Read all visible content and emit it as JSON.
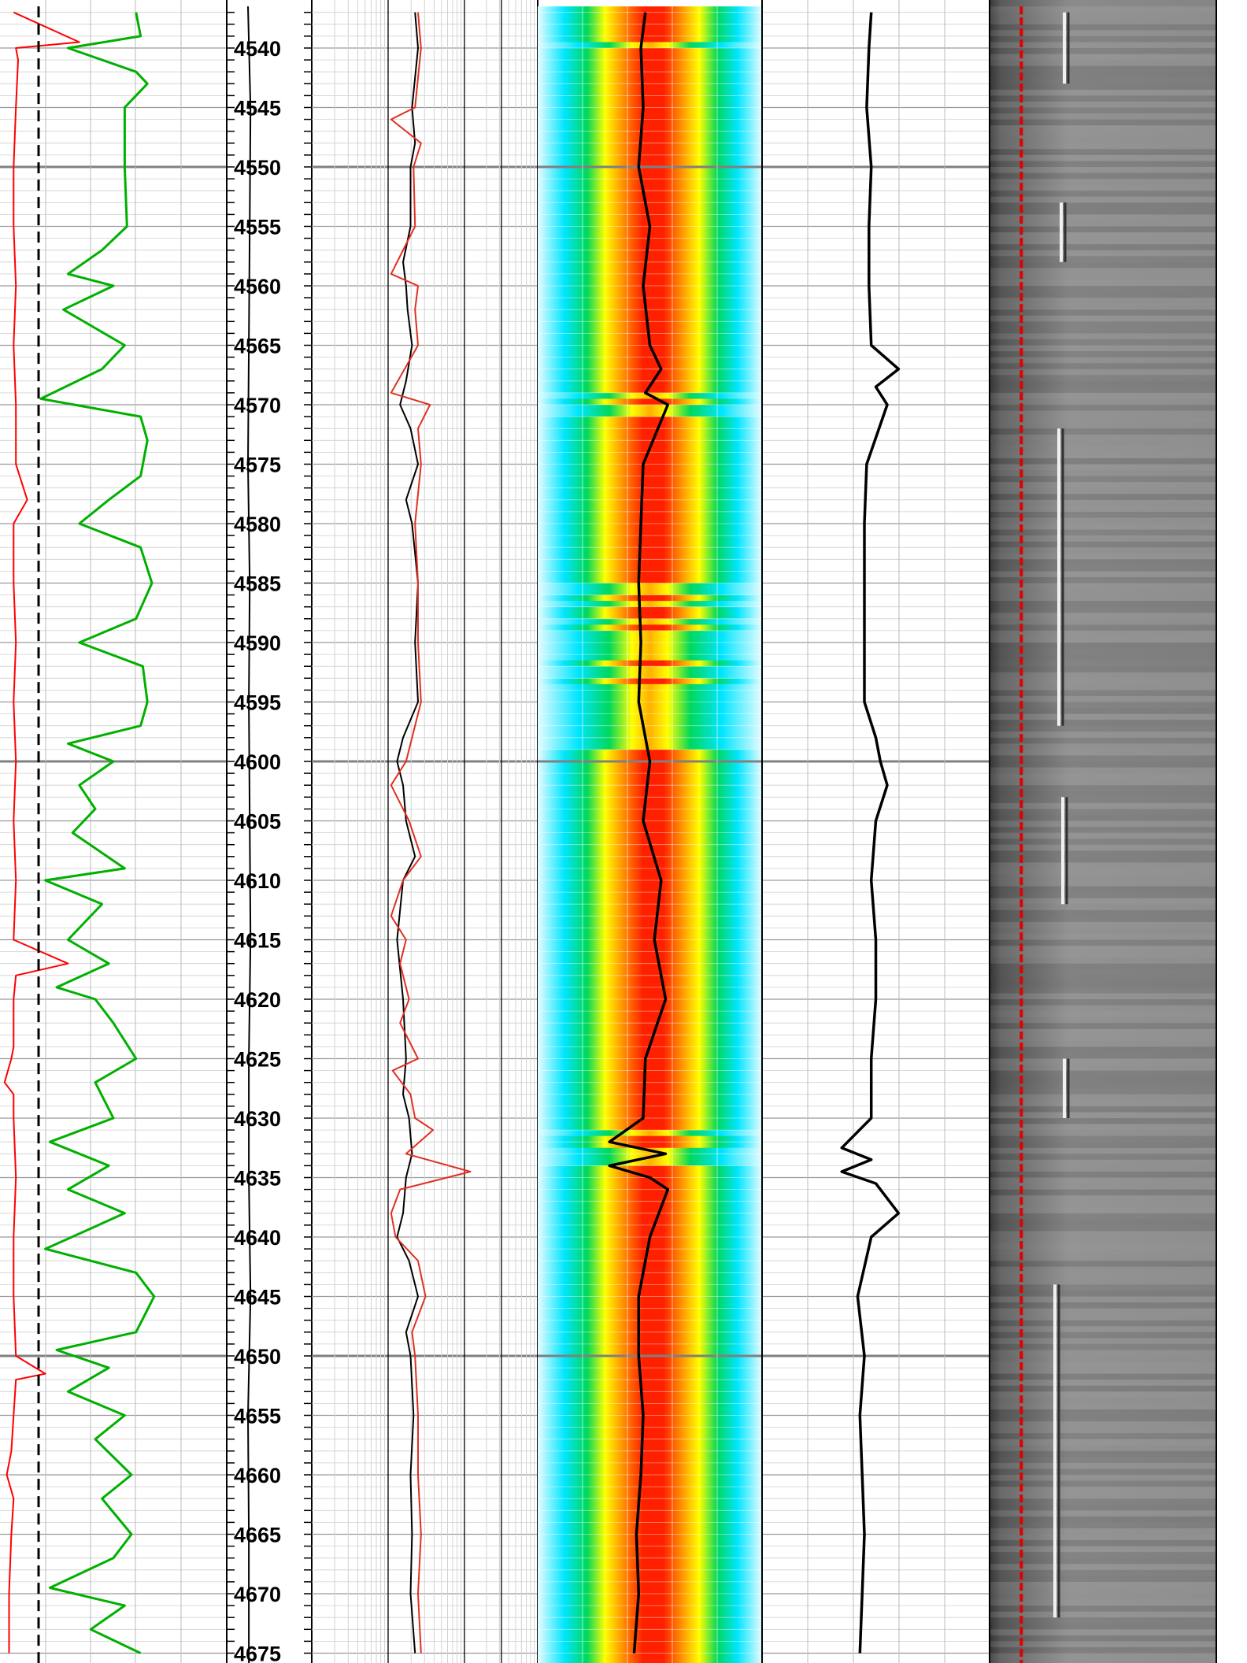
{
  "chart_data": {
    "type": "line",
    "title": "",
    "depth_axis": {
      "label": "",
      "range": [
        4536.5,
        4676.0
      ],
      "major_step": 50,
      "label_step": 5,
      "minor_step": 1,
      "tick_labels": [
        "4540",
        "4545",
        "4550",
        "4555",
        "4560",
        "4565",
        "4570",
        "4575",
        "4580",
        "4585",
        "4590",
        "4595",
        "4600",
        "4605",
        "4610",
        "4615",
        "4620",
        "4625",
        "4630",
        "4635",
        "4640",
        "4645",
        "4650",
        "4655",
        "4660",
        "4665",
        "4670",
        "4675"
      ]
    },
    "tracks": [
      {
        "name": "track-1",
        "grid": "linear",
        "series": [
          {
            "color": "#ff0000",
            "x_range": [
              0,
              1
            ],
            "depths": [
              4537,
              4539.5,
              4540,
              4541,
              4545,
              4550,
              4555,
              4560,
              4565,
              4570,
              4575,
              4578,
              4580,
              4585,
              4590,
              4595,
              4600,
              4605,
              4610,
              4615,
              4617,
              4618,
              4620,
              4624,
              4625,
              4627,
              4628,
              4630,
              4635,
              4640,
              4645,
              4650,
              4651.5,
              4652,
              4655,
              4658,
              4660,
              4662,
              4665,
              4670,
              4675
            ],
            "values": [
              0.06,
              0.35,
              0.07,
              0.08,
              0.07,
              0.06,
              0.06,
              0.07,
              0.06,
              0.07,
              0.07,
              0.12,
              0.06,
              0.06,
              0.07,
              0.06,
              0.07,
              0.06,
              0.07,
              0.06,
              0.3,
              0.07,
              0.06,
              0.06,
              0.05,
              0.02,
              0.06,
              0.06,
              0.07,
              0.06,
              0.06,
              0.07,
              0.2,
              0.07,
              0.06,
              0.05,
              0.03,
              0.06,
              0.05,
              0.04,
              0.04
            ]
          },
          {
            "color": "#000000",
            "dash": true,
            "x_range": [
              0,
              1
            ],
            "depths": [
              4536.5,
              4676
            ],
            "values": [
              0.17,
              0.17
            ]
          },
          {
            "color": "#00b000",
            "x_range": [
              0,
              1
            ],
            "depths": [
              4537,
              4539,
              4540,
              4542,
              4543,
              4545,
              4550,
              4555,
              4557,
              4559,
              4560,
              4562,
              4565,
              4567,
              4569.5,
              4571,
              4573,
              4576,
              4578,
              4580,
              4582,
              4585,
              4588,
              4590,
              4592,
              4595,
              4597,
              4598.5,
              4600,
              4602,
              4604,
              4606,
              4609,
              4610,
              4612,
              4615,
              4617,
              4619,
              4620,
              4622,
              4625,
              4627,
              4630,
              4632,
              4634,
              4636,
              4638,
              4641,
              4643,
              4645,
              4648,
              4649.5,
              4651,
              4653,
              4655,
              4657,
              4660,
              4662,
              4665,
              4667,
              4669.5,
              4671,
              4673,
              4675
            ],
            "values": [
              0.6,
              0.62,
              0.3,
              0.6,
              0.65,
              0.55,
              0.55,
              0.56,
              0.45,
              0.3,
              0.5,
              0.28,
              0.55,
              0.45,
              0.18,
              0.62,
              0.65,
              0.62,
              0.48,
              0.35,
              0.62,
              0.67,
              0.6,
              0.35,
              0.63,
              0.65,
              0.62,
              0.3,
              0.5,
              0.35,
              0.42,
              0.32,
              0.55,
              0.2,
              0.45,
              0.3,
              0.48,
              0.25,
              0.42,
              0.5,
              0.6,
              0.42,
              0.5,
              0.22,
              0.48,
              0.3,
              0.55,
              0.2,
              0.6,
              0.68,
              0.6,
              0.25,
              0.48,
              0.3,
              0.55,
              0.42,
              0.58,
              0.45,
              0.58,
              0.5,
              0.22,
              0.55,
              0.4,
              0.62
            ]
          }
        ]
      },
      {
        "name": "track-2",
        "grid": "linear",
        "series": [
          {
            "color": "#000000",
            "x_range": [
              0,
              1
            ],
            "depths": [
              4536.5,
              4545,
              4555,
              4565,
              4575,
              4585,
              4595,
              4605,
              4615,
              4625,
              4635,
              4645,
              4655,
              4665,
              4676
            ],
            "values": [
              0.25,
              0.28,
              0.27,
              0.26,
              0.25,
              0.27,
              0.26,
              0.27,
              0.28,
              0.26,
              0.26,
              0.28,
              0.25,
              0.26,
              0.26
            ]
          }
        ]
      },
      {
        "name": "track-3",
        "grid": "logarithmic",
        "series": [
          {
            "color": "#000000",
            "x_range": [
              0,
              1
            ],
            "depths": [
              4537,
              4540,
              4545,
              4548,
              4550,
              4555,
              4558,
              4560,
              4562,
              4565,
              4568,
              4570,
              4572,
              4575,
              4578,
              4580,
              4585,
              4590,
              4595,
              4598,
              4600,
              4602,
              4605,
              4608,
              4610,
              4615,
              4620,
              4625,
              4628,
              4630,
              4633,
              4635,
              4638,
              4640,
              4642,
              4645,
              4648,
              4650,
              4655,
              4660,
              4665,
              4670,
              4675
            ],
            "values": [
              0.18,
              0.2,
              0.16,
              0.18,
              0.15,
              0.15,
              0.1,
              0.12,
              0.13,
              0.16,
              0.12,
              0.08,
              0.15,
              0.2,
              0.12,
              0.16,
              0.2,
              0.18,
              0.2,
              0.1,
              0.06,
              0.1,
              0.12,
              0.18,
              0.1,
              0.06,
              0.1,
              0.12,
              0.1,
              0.14,
              0.16,
              0.12,
              0.1,
              0.06,
              0.14,
              0.2,
              0.12,
              0.15,
              0.17,
              0.15,
              0.16,
              0.15,
              0.18
            ]
          },
          {
            "color": "#e03020",
            "x_range": [
              0,
              1
            ],
            "depths": [
              4537,
              4540,
              4545,
              4546,
              4548,
              4550,
              4555,
              4559,
              4560,
              4562,
              4565,
              4569,
              4570,
              4572,
              4575,
              4580,
              4585,
              4590,
              4595,
              4600,
              4602,
              4605,
              4608,
              4610,
              4613,
              4615,
              4617,
              4620,
              4622,
              4625,
              4626,
              4628,
              4630,
              4631,
              4633,
              4634.5,
              4636,
              4638,
              4640,
              4642,
              4645,
              4648,
              4650,
              4655,
              4660,
              4665,
              4670,
              4675
            ],
            "values": [
              0.2,
              0.22,
              0.18,
              0.02,
              0.22,
              0.17,
              0.18,
              0.02,
              0.2,
              0.18,
              0.2,
              0.02,
              0.28,
              0.2,
              0.22,
              0.18,
              0.2,
              0.2,
              0.22,
              0.12,
              0.02,
              0.14,
              0.22,
              0.1,
              0.02,
              0.12,
              0.08,
              0.14,
              0.08,
              0.2,
              0.03,
              0.15,
              0.18,
              0.3,
              0.12,
              0.55,
              0.08,
              0.02,
              0.05,
              0.2,
              0.25,
              0.16,
              0.18,
              0.2,
              0.2,
              0.22,
              0.2,
              0.22
            ]
          }
        ]
      },
      {
        "name": "track-4",
        "type": "heatmap",
        "colorscale": [
          "#ffffff",
          "#00e5ff",
          "#00d85a",
          "#ffff00",
          "#ff9000",
          "#ff2000"
        ],
        "series": [
          {
            "color": "#000000",
            "x_range": [
              0,
              1
            ],
            "depths": [
              4537,
              4540,
              4545,
              4550,
              4555,
              4560,
              4565,
              4567,
              4569,
              4570,
              4575,
              4580,
              4585,
              4590,
              4595,
              4600,
              4605,
              4610,
              4615,
              4620,
              4625,
              4630,
              4632,
              4633,
              4634,
              4635,
              4636,
              4640,
              4645,
              4650,
              4655,
              4660,
              4665,
              4670,
              4675
            ],
            "values": [
              0.48,
              0.46,
              0.47,
              0.45,
              0.5,
              0.47,
              0.5,
              0.55,
              0.48,
              0.58,
              0.47,
              0.46,
              0.45,
              0.46,
              0.45,
              0.5,
              0.47,
              0.55,
              0.52,
              0.57,
              0.48,
              0.47,
              0.32,
              0.57,
              0.32,
              0.5,
              0.58,
              0.5,
              0.45,
              0.45,
              0.47,
              0.46,
              0.44,
              0.45,
              0.43
            ]
          }
        ],
        "band_intensity": {
          "depths": [
            4536.5,
            4540,
            4545,
            4550,
            4555,
            4560,
            4565,
            4570,
            4575,
            4580,
            4585,
            4590,
            4595,
            4598,
            4600,
            4605,
            4610,
            4615,
            4620,
            4625,
            4630,
            4633,
            4635,
            4640,
            4645,
            4650,
            4655,
            4660,
            4665,
            4670,
            4676
          ],
          "values": [
            0.9,
            0.7,
            0.85,
            0.75,
            0.9,
            0.8,
            0.95,
            0.6,
            0.85,
            0.75,
            0.7,
            0.6,
            0.5,
            0.4,
            0.95,
            1.0,
            1.0,
            0.9,
            0.85,
            0.8,
            0.85,
            0.5,
            0.95,
            1.0,
            0.95,
            0.85,
            0.9,
            0.85,
            0.9,
            0.8,
            0.85
          ]
        }
      },
      {
        "name": "track-5",
        "grid": "linear",
        "series": [
          {
            "color": "#000000",
            "x_range": [
              0,
              1
            ],
            "depths": [
              4537,
              4540,
              4545,
              4550,
              4555,
              4560,
              4565,
              4567,
              4568.5,
              4570,
              4575,
              4580,
              4585,
              4590,
              4595,
              4598,
              4600,
              4602,
              4605,
              4610,
              4615,
              4620,
              4625,
              4630,
              4632.5,
              4633.5,
              4634.5,
              4635.5,
              4638,
              4640,
              4645,
              4650,
              4655,
              4660,
              4665,
              4670,
              4675
            ],
            "values": [
              0.48,
              0.47,
              0.46,
              0.48,
              0.47,
              0.47,
              0.48,
              0.6,
              0.5,
              0.55,
              0.46,
              0.45,
              0.45,
              0.45,
              0.45,
              0.5,
              0.52,
              0.55,
              0.5,
              0.48,
              0.5,
              0.5,
              0.48,
              0.48,
              0.35,
              0.48,
              0.35,
              0.5,
              0.6,
              0.48,
              0.42,
              0.45,
              0.43,
              0.44,
              0.45,
              0.44,
              0.43
            ]
          }
        ]
      },
      {
        "name": "track-6",
        "type": "image",
        "colorscale": [
          "#404040",
          "#cfcfcf"
        ],
        "series": [
          {
            "color": "#e00000",
            "x_range": [
              0,
              1
            ],
            "depths": [
              4536.5,
              4600,
              4676
            ],
            "values": [
              0.14,
              0.14,
              0.14
            ]
          }
        ]
      }
    ]
  }
}
